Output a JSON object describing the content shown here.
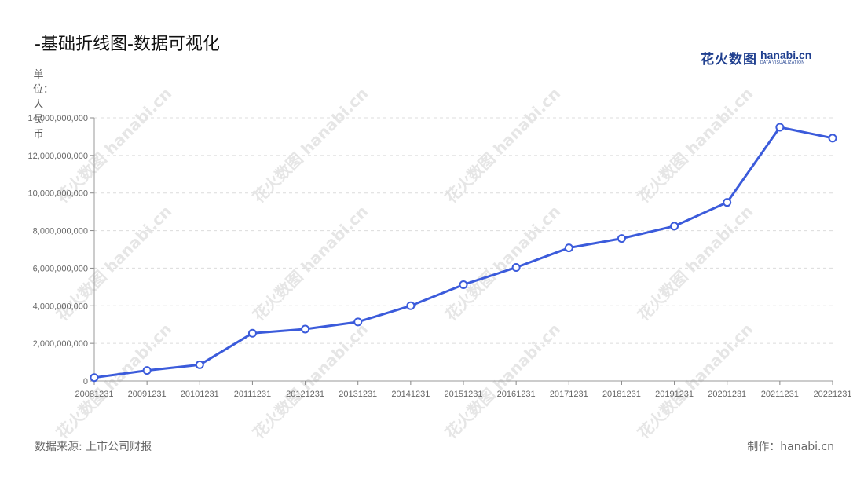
{
  "header": {
    "title": "-基础折线图-数据可视化"
  },
  "logo": {
    "cn": "花火数图",
    "en": "hanabi.cn",
    "sub": "DATA VISUALIZATION"
  },
  "footer": {
    "source": "数据来源: 上市公司财报",
    "maker": "制作：hanabi.cn"
  },
  "watermark": {
    "text": "花火数图 hanabi.cn"
  },
  "chart_data": {
    "type": "line",
    "title": "-基础折线图-数据可视化",
    "ylabel": "单位：人民币",
    "xlabel": "",
    "categories": [
      "20081231",
      "20091231",
      "20101231",
      "20111231",
      "20121231",
      "20131231",
      "20141231",
      "20151231",
      "20161231",
      "20171231",
      "20181231",
      "20191231",
      "20201231",
      "20211231",
      "20221231"
    ],
    "series": [
      {
        "values": [
          180000000,
          560000000,
          860000000,
          2540000000,
          2760000000,
          3140000000,
          4000000000,
          5120000000,
          6040000000,
          7080000000,
          7580000000,
          8240000000,
          9500000000,
          13500000000,
          12920000000
        ]
      }
    ],
    "ylim": [
      0,
      14000000000
    ],
    "yticks": [
      0,
      2000000000,
      4000000000,
      6000000000,
      8000000000,
      10000000000,
      12000000000,
      14000000000
    ],
    "ytick_labels": [
      "0",
      "2,000,000,000",
      "4,000,000,000",
      "6,000,000,000",
      "8,000,000,000",
      "10,000,000,000",
      "12,000,000,000",
      "14,000,000,000"
    ],
    "grid": true,
    "line_color": "#3b5bdb",
    "marker_fill": "#ffffff"
  }
}
